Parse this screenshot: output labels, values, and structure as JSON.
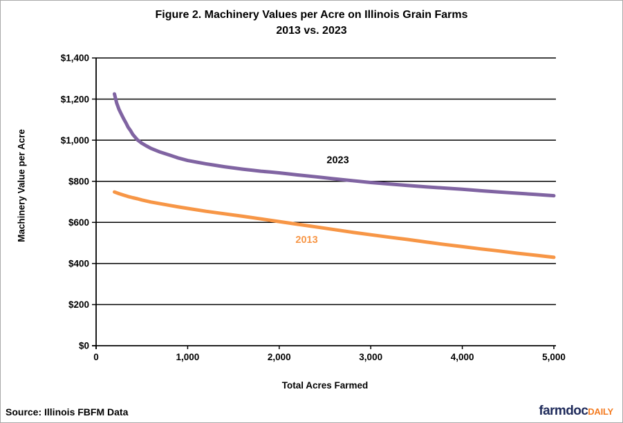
{
  "title": {
    "line1": "Figure 2. Machinery Values per Acre on Illinois Grain Farms",
    "line2": "2013 vs. 2023"
  },
  "chart_data": {
    "type": "line",
    "title": "Figure 2. Machinery Values per Acre on Illinois Grain Farms 2013 vs. 2023",
    "xlabel": "Total Acres Farmed",
    "ylabel": "Machinery Value per Acre",
    "xlim": [
      0,
      5000
    ],
    "ylim": [
      0,
      1400
    ],
    "grid": "horizontal-only",
    "legend": "inline-labels-on-lines",
    "x_tick_values": [
      0,
      1000,
      2000,
      3000,
      4000,
      5000
    ],
    "x_tick_labels": [
      "0",
      "1,000",
      "2,000",
      "3,000",
      "4,000",
      "5,000"
    ],
    "y_tick_values": [
      0,
      200,
      400,
      600,
      800,
      1000,
      1200,
      1400
    ],
    "y_tick_labels": [
      "$0",
      "$200",
      "$400",
      "$600",
      "$800",
      "$1,000",
      "$1,200",
      "$1,400"
    ],
    "series": [
      {
        "name": "2023",
        "color": "#8064A2",
        "label": {
          "text": "2023",
          "color": "#000000",
          "x": 2640,
          "y": 905
        },
        "points": [
          [
            200,
            1225
          ],
          [
            225,
            1180
          ],
          [
            250,
            1150
          ],
          [
            275,
            1127
          ],
          [
            300,
            1105
          ],
          [
            325,
            1085
          ],
          [
            350,
            1063
          ],
          [
            375,
            1047
          ],
          [
            400,
            1028
          ],
          [
            450,
            1002
          ],
          [
            500,
            985
          ],
          [
            550,
            972
          ],
          [
            600,
            960
          ],
          [
            700,
            942
          ],
          [
            800,
            928
          ],
          [
            900,
            913
          ],
          [
            1000,
            901
          ],
          [
            1100,
            893
          ],
          [
            1200,
            885
          ],
          [
            1300,
            878
          ],
          [
            1400,
            871
          ],
          [
            1500,
            865
          ],
          [
            1600,
            859
          ],
          [
            1700,
            854
          ],
          [
            1800,
            849
          ],
          [
            1900,
            845
          ],
          [
            2000,
            841
          ],
          [
            2200,
            831
          ],
          [
            2400,
            822
          ],
          [
            2600,
            812
          ],
          [
            2800,
            803
          ],
          [
            3000,
            794
          ],
          [
            3200,
            787
          ],
          [
            3400,
            780
          ],
          [
            3600,
            773
          ],
          [
            3800,
            767
          ],
          [
            4000,
            761
          ],
          [
            4200,
            754
          ],
          [
            4400,
            748
          ],
          [
            4600,
            742
          ],
          [
            4800,
            736
          ],
          [
            5000,
            730
          ]
        ]
      },
      {
        "name": "2013",
        "color": "#F79646",
        "label": {
          "text": "2013",
          "color": "#F79646",
          "x": 2300,
          "y": 517
        },
        "points": [
          [
            200,
            748
          ],
          [
            250,
            740
          ],
          [
            300,
            733
          ],
          [
            350,
            726
          ],
          [
            400,
            720
          ],
          [
            450,
            715
          ],
          [
            500,
            709
          ],
          [
            600,
            699
          ],
          [
            700,
            691
          ],
          [
            800,
            683
          ],
          [
            900,
            675
          ],
          [
            1000,
            668
          ],
          [
            1200,
            654
          ],
          [
            1400,
            642
          ],
          [
            1600,
            630
          ],
          [
            1800,
            617
          ],
          [
            2000,
            604
          ],
          [
            2200,
            591
          ],
          [
            2400,
            578
          ],
          [
            2600,
            565
          ],
          [
            2800,
            552
          ],
          [
            3000,
            540
          ],
          [
            3200,
            528
          ],
          [
            3400,
            517
          ],
          [
            3600,
            505
          ],
          [
            3800,
            493
          ],
          [
            4000,
            482
          ],
          [
            4200,
            471
          ],
          [
            4400,
            461
          ],
          [
            4600,
            450
          ],
          [
            4800,
            440
          ],
          [
            5000,
            430
          ]
        ]
      }
    ]
  },
  "footer": {
    "source": "Source: Illinois FBFM Data",
    "logo_primary": "farmdoc",
    "logo_secondary": "DAILY"
  },
  "colors": {
    "series_2023": "#8064A2",
    "series_2013": "#F79646",
    "logo_navy": "#1F2B5B",
    "logo_orange": "#F47B20",
    "axis": "#000000",
    "border": "#A8A8A8"
  }
}
